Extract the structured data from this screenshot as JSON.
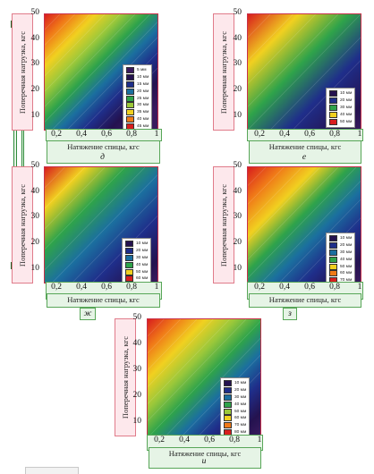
{
  "chart_data": [
    {
      "type": "heatmap",
      "panel_letter": "д",
      "ylabel": "Поперечная нагрузка, кгс",
      "xlabel": "Натяжение спицы, кгс",
      "x_ticks": [
        "0,2",
        "0,4",
        "0,6",
        "0,8",
        "1"
      ],
      "y_ticks": [
        "10",
        "20",
        "30",
        "40",
        "50"
      ],
      "xlim": [
        0.1,
        1.0
      ],
      "ylim": [
        5,
        50
      ],
      "legend_placement": "right",
      "legend": [
        {
          "label": "5 мм",
          "color": "#3a1a5e"
        },
        {
          "label": "10 мм",
          "color": "#24124f"
        },
        {
          "label": "15 мм",
          "color": "#1f2e8a"
        },
        {
          "label": "20 мм",
          "color": "#1b6f9f"
        },
        {
          "label": "25 мм",
          "color": "#2fa34a"
        },
        {
          "label": "30 мм",
          "color": "#9cc83a"
        },
        {
          "label": "35 мм",
          "color": "#f1d020"
        },
        {
          "label": "40 мм",
          "color": "#f07a18"
        },
        {
          "label": "45 мм",
          "color": "#d81e1e"
        }
      ]
    },
    {
      "type": "heatmap",
      "panel_letter": "е",
      "ylabel": "Поперечная нагрузка, кгс",
      "xlabel": "Натяжение спицы, кгс",
      "x_ticks": [
        "0,2",
        "0,4",
        "0,6",
        "0,8",
        "1"
      ],
      "y_ticks": [
        "10",
        "20",
        "30",
        "40",
        "50"
      ],
      "xlim": [
        0.1,
        1.0
      ],
      "ylim": [
        5,
        50
      ],
      "legend_placement": "right",
      "legend": [
        {
          "label": "10 мм",
          "color": "#24124f"
        },
        {
          "label": "20 мм",
          "color": "#1f2e8a"
        },
        {
          "label": "30 мм",
          "color": "#2fa34a"
        },
        {
          "label": "40 мм",
          "color": "#f1d020"
        },
        {
          "label": "50 мм",
          "color": "#d81e1e"
        }
      ]
    },
    {
      "type": "heatmap",
      "panel_letter": "ж",
      "ylabel": "Поперечная нагрузка, кгс",
      "xlabel": "Натяжение спицы, кгс",
      "x_ticks": [
        "0,2",
        "0,4",
        "0,6",
        "0,8",
        "1"
      ],
      "y_ticks": [
        "10",
        "20",
        "30",
        "40",
        "50"
      ],
      "xlim": [
        0.1,
        1.0
      ],
      "ylim": [
        5,
        50
      ],
      "legend_placement": "right",
      "legend": [
        {
          "label": "10 мм",
          "color": "#24124f"
        },
        {
          "label": "20 мм",
          "color": "#1f2e8a"
        },
        {
          "label": "30 мм",
          "color": "#1b6f9f"
        },
        {
          "label": "40 мм",
          "color": "#2fa34a"
        },
        {
          "label": "50 мм",
          "color": "#f1d020"
        },
        {
          "label": "60 мм",
          "color": "#d81e1e"
        }
      ]
    },
    {
      "type": "heatmap",
      "panel_letter": "з",
      "ylabel": "Поперечная нагрузка, кгс",
      "xlabel": "Натяжение спицы, кгс",
      "x_ticks": [
        "0,2",
        "0,4",
        "0,6",
        "0,8",
        "1"
      ],
      "y_ticks": [
        "10",
        "20",
        "30",
        "40",
        "50"
      ],
      "xlim": [
        0.1,
        1.0
      ],
      "ylim": [
        5,
        50
      ],
      "legend_placement": "right",
      "legend": [
        {
          "label": "10 мм",
          "color": "#24124f"
        },
        {
          "label": "20 мм",
          "color": "#1f2e8a"
        },
        {
          "label": "30 мм",
          "color": "#1b6f9f"
        },
        {
          "label": "40 мм",
          "color": "#2fa34a"
        },
        {
          "label": "50 мм",
          "color": "#f1d020"
        },
        {
          "label": "60 мм",
          "color": "#f07a18"
        },
        {
          "label": "70 мм",
          "color": "#d81e1e"
        }
      ]
    },
    {
      "type": "heatmap",
      "panel_letter": "и",
      "ylabel": "Поперечная нагрузка, кгс",
      "xlabel": "Натяжение спицы, кгс",
      "x_ticks": [
        "0,2",
        "0,4",
        "0,6",
        "0,8",
        "1"
      ],
      "y_ticks": [
        "10",
        "20",
        "30",
        "40",
        "50"
      ],
      "xlim": [
        0.1,
        1.0
      ],
      "ylim": [
        5,
        50
      ],
      "legend_placement": "right",
      "legend": [
        {
          "label": "10 мм",
          "color": "#24124f"
        },
        {
          "label": "20 мм",
          "color": "#1f2e8a"
        },
        {
          "label": "30 мм",
          "color": "#1b6f9f"
        },
        {
          "label": "40 мм",
          "color": "#2fa34a"
        },
        {
          "label": "50 мм",
          "color": "#9cc83a"
        },
        {
          "label": "60 мм",
          "color": "#f1d020"
        },
        {
          "label": "70 мм",
          "color": "#f07a18"
        },
        {
          "label": "80 мм",
          "color": "#d81e1e"
        }
      ]
    }
  ]
}
